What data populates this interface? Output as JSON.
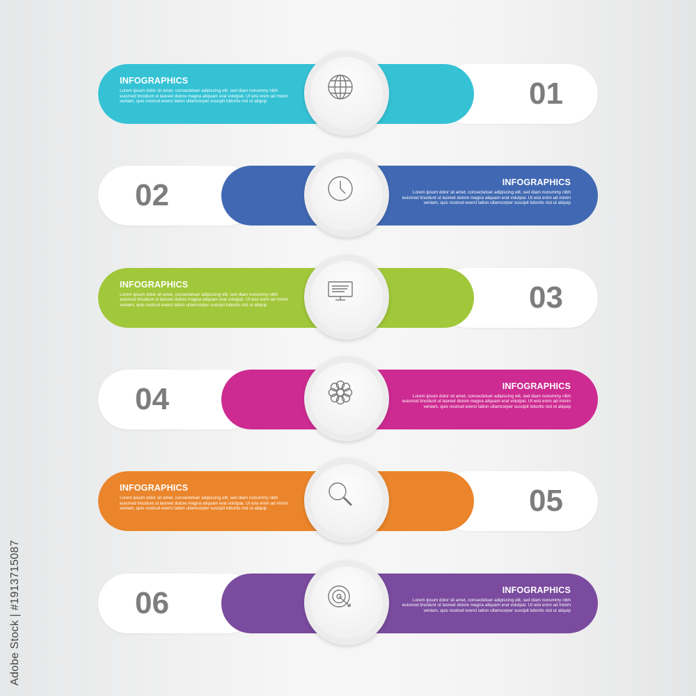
{
  "steps": [
    {
      "number": "01",
      "title": "INFOGRAPHICS",
      "body": "Lorem ipsum dolor sit amet, consectetuer adipiscing elit, sed diam nonummy nibh euismod tincidunt ut laoreet dolore magna aliquam erat volutpat. Ut wisi enim ad minim veniam, quis nostrud exerci tation ullamcorper suscipit lobortis nisl ut aliquip",
      "color": "#35c2d5",
      "icon": "globe-icon",
      "side": "left"
    },
    {
      "number": "02",
      "title": "INFOGRAPHICS",
      "body": "Lorem ipsum dolor sit amet, consectetuer adipiscing elit, sed diam nonummy nibh euismod tincidunt ut laoreet dolore magna aliquam erat volutpat. Ut wisi enim ad minim veniam, quis nostrud exerci tation ullamcorper suscipit lobortis nisl ut aliquip",
      "color": "#4169b3",
      "icon": "clock-icon",
      "side": "right"
    },
    {
      "number": "03",
      "title": "INFOGRAPHICS",
      "body": "Lorem ipsum dolor sit amet, consectetuer adipiscing elit, sed diam nonummy nibh euismod tincidunt ut laoreet dolore magna aliquam erat volutpat. Ut wisi enim ad minim veniam, quis nostrud exerci tation ullamcorper suscipit lobortis nisl ut aliquip",
      "color": "#a1c73a",
      "icon": "monitor-icon",
      "side": "left"
    },
    {
      "number": "04",
      "title": "INFOGRAPHICS",
      "body": "Lorem ipsum dolor sit amet, consectetuer adipiscing elit, sed diam nonummy nibh euismod tincidunt ut laoreet dolore magna aliquam erat volutpat. Ut wisi enim ad minim veniam, quis nostrud exerci tation ullamcorper suscipit lobortis nisl ut aliquip",
      "color": "#cd2b91",
      "icon": "flower-icon",
      "side": "right"
    },
    {
      "number": "05",
      "title": "INFOGRAPHICS",
      "body": "Lorem ipsum dolor sit amet, consectetuer adipiscing elit, sed diam nonummy nibh euismod tincidunt ut laoreet dolore magna aliquam erat volutpat. Ut wisi enim ad minim veniam, quis nostrud exerci tation ullamcorper suscipit lobortis nisl ut aliquip",
      "color": "#ea852b",
      "icon": "search-icon",
      "side": "left"
    },
    {
      "number": "06",
      "title": "INFOGRAPHICS",
      "body": "Lorem ipsum dolor sit amet, consectetuer adipiscing elit, sed diam nonummy nibh euismod tincidunt ut laoreet dolore magna aliquam erat volutpat. Ut wisi enim ad minim veniam, quis nostrud exerci tation ullamcorper suscipit lobortis nisl ut aliquip",
      "color": "#7a4b9e",
      "icon": "target-icon",
      "side": "right"
    }
  ],
  "watermark": "Adobe Stock | #1913715087"
}
